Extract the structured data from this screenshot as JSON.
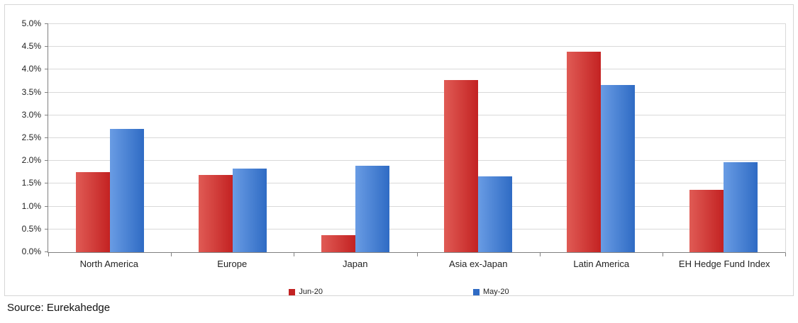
{
  "chart_data": {
    "type": "bar",
    "title": "",
    "categories": [
      "North America",
      "Europe",
      "Japan",
      "Asia ex-Japan",
      "Latin America",
      "EH Hedge Fund Index"
    ],
    "series": [
      {
        "name": "Jun-20",
        "color": "#C32222",
        "color_light": "#E05B55",
        "values": [
          1.75,
          1.7,
          0.38,
          3.78,
          4.4,
          1.37
        ]
      },
      {
        "name": "May-20",
        "color": "#2F6BC4",
        "color_light": "#699CE4",
        "values": [
          2.7,
          1.83,
          1.89,
          1.66,
          3.67,
          1.97
        ]
      }
    ],
    "xlabel": "",
    "ylabel": "",
    "ylim": [
      0,
      5.0
    ],
    "ytick_step": 0.5,
    "ytick_labels": [
      "0.0%",
      "0.5%",
      "1.0%",
      "1.5%",
      "2.0%",
      "2.5%",
      "3.0%",
      "3.5%",
      "4.0%",
      "4.5%",
      "5.0%"
    ],
    "grid": true,
    "legend_position": "bottom"
  },
  "footer": {
    "source": "Source: Eurekahedge"
  }
}
